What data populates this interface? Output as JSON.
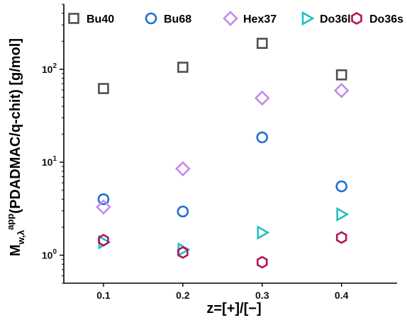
{
  "chart_data": {
    "type": "scatter",
    "x_scale": "linear",
    "y_scale": "log",
    "xlim": [
      0.05,
      0.47
    ],
    "ylim": [
      0.5,
      500
    ],
    "x_ticks": [
      0.1,
      0.2,
      0.3,
      0.4
    ],
    "x_tick_labels": [
      "0.1",
      "0.2",
      "0.3",
      "0.4"
    ],
    "y_ticks": [
      1,
      10,
      100
    ],
    "y_tick_labels": [
      {
        "base": "10",
        "exp": "0"
      },
      {
        "base": "10",
        "exp": "1"
      },
      {
        "base": "10",
        "exp": "2"
      }
    ],
    "xlabel": "z=[+]/[−]",
    "ylabel": {
      "main": "M",
      "sub": "w,λ",
      "sup": "app",
      "rest": "(PDADMAC/q-chit) [g/mol]"
    },
    "grid": false,
    "legend_position": "top",
    "series": [
      {
        "name": "Bu40",
        "marker": "square",
        "color": "#505050",
        "x": [
          0.1,
          0.2,
          0.3,
          0.4
        ],
        "y": [
          62,
          105,
          190,
          87
        ]
      },
      {
        "name": "Bu68",
        "marker": "circle",
        "color": "#1f6fd1",
        "x": [
          0.1,
          0.2,
          0.3,
          0.4
        ],
        "y": [
          4.0,
          2.95,
          18.5,
          5.5
        ]
      },
      {
        "name": "Hex37",
        "marker": "diamond",
        "color": "#c58ae8",
        "x": [
          0.1,
          0.2,
          0.3,
          0.4
        ],
        "y": [
          3.3,
          8.5,
          49,
          59
        ]
      },
      {
        "name": "Do36l",
        "marker": "triangle-right",
        "color": "#22c0c0",
        "x": [
          0.1,
          0.2,
          0.3,
          0.4
        ],
        "y": [
          1.38,
          1.15,
          1.75,
          2.75
        ]
      },
      {
        "name": "Do36s",
        "marker": "hexagon",
        "color": "#b0155c",
        "x": [
          0.1,
          0.2,
          0.3,
          0.4
        ],
        "y": [
          1.45,
          1.07,
          0.84,
          1.55
        ]
      }
    ]
  }
}
